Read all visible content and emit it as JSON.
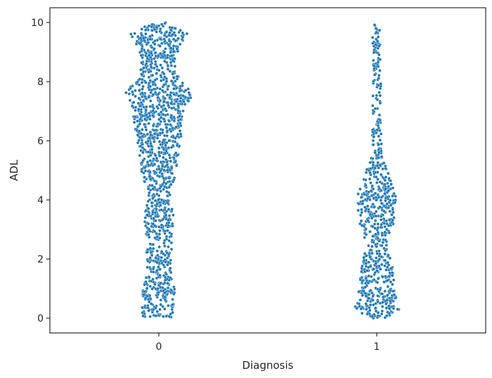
{
  "chart_data": {
    "type": "scatter",
    "subtype": "swarm",
    "title": "",
    "xlabel": "Diagnosis",
    "ylabel": "ADL",
    "categories": [
      "0",
      "1"
    ],
    "ylim": [
      -0.5,
      10.5
    ],
    "yticks": [
      0,
      2,
      4,
      6,
      8,
      10
    ],
    "grid": false,
    "point_color": "#1f77b4",
    "point_edge_color": "#ffffff",
    "series": [
      {
        "category": "0",
        "count": 1389,
        "density": [
          [
            0.0,
            0.45
          ],
          [
            0.3,
            0.5
          ],
          [
            1.0,
            0.45
          ],
          [
            1.5,
            0.35
          ],
          [
            2.0,
            0.4
          ],
          [
            2.7,
            0.35
          ],
          [
            3.4,
            0.45
          ],
          [
            4.0,
            0.3
          ],
          [
            5.0,
            0.5
          ],
          [
            5.4,
            0.55
          ],
          [
            5.9,
            0.6
          ],
          [
            6.5,
            0.7
          ],
          [
            7.1,
            0.75
          ],
          [
            7.6,
            1.0
          ],
          [
            8.2,
            0.55
          ],
          [
            8.7,
            0.5
          ],
          [
            9.2,
            0.6
          ],
          [
            9.6,
            0.85
          ],
          [
            10.0,
            0.2
          ]
        ]
      },
      {
        "category": "1",
        "count": 760,
        "density": [
          [
            0.0,
            0.25
          ],
          [
            0.3,
            0.65
          ],
          [
            0.7,
            0.55
          ],
          [
            1.2,
            0.5
          ],
          [
            1.8,
            0.45
          ],
          [
            2.5,
            0.3
          ],
          [
            3.2,
            0.5
          ],
          [
            4.0,
            0.6
          ],
          [
            4.5,
            0.45
          ],
          [
            5.0,
            0.3
          ],
          [
            5.6,
            0.15
          ],
          [
            6.5,
            0.12
          ],
          [
            7.5,
            0.12
          ],
          [
            8.5,
            0.12
          ],
          [
            9.5,
            0.13
          ],
          [
            10.0,
            0.08
          ]
        ]
      }
    ]
  }
}
